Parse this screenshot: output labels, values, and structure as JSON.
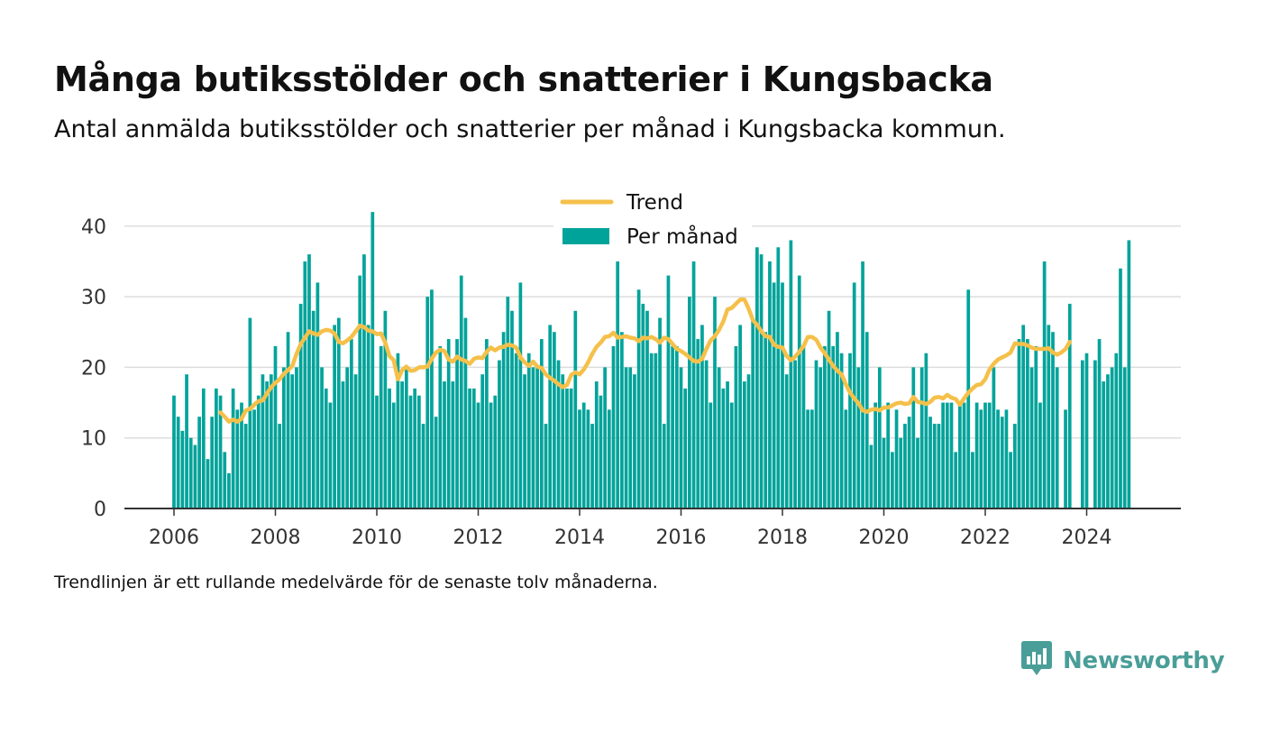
{
  "title": "Många butiksstölder och snatterier i Kungsbacka",
  "subtitle": "Antal anmälda butiksstölder och snatterier per månad i Kungsbacka kommun.",
  "footnote": "Trendlinjen är ett rullande medelvärde för de senaste tolv månaderna.",
  "brand": {
    "name": "Newsworthy",
    "icon": "newsworthy-logo-icon"
  },
  "colors": {
    "bars": "#00a39a",
    "trend": "#f5c04a",
    "grid": "#dddddd",
    "axis": "#333333",
    "brand": "#4a9e98"
  },
  "chart_data": {
    "type": "bar",
    "title": "Många butiksstölder och snatterier i Kungsbacka",
    "xlabel": "",
    "ylabel": "",
    "x_ticks": [
      "2006",
      "2008",
      "2010",
      "2012",
      "2014",
      "2016",
      "2018",
      "2020",
      "2022",
      "2024"
    ],
    "y_ticks": [
      0,
      10,
      20,
      30,
      40
    ],
    "ylim": [
      0,
      42
    ],
    "x_start": "2006-01",
    "grid": true,
    "legend_position": "top-center",
    "legend": [
      "Trend",
      "Per månad"
    ],
    "series": [
      {
        "name": "Per månad",
        "type": "bar",
        "values": [
          16,
          13,
          11,
          19,
          10,
          9,
          13,
          17,
          7,
          13,
          17,
          16,
          8,
          5,
          17,
          14,
          15,
          12,
          27,
          14,
          16,
          19,
          18,
          19,
          23,
          12,
          20,
          25,
          19,
          20,
          29,
          35,
          36,
          28,
          32,
          20,
          17,
          15,
          26,
          27,
          18,
          20,
          24,
          19,
          33,
          36,
          26,
          42,
          16,
          23,
          28,
          17,
          15,
          22,
          18,
          20,
          16,
          17,
          16,
          12,
          30,
          31,
          13,
          23,
          18,
          24,
          18,
          24,
          33,
          27,
          17,
          17,
          15,
          19,
          24,
          15,
          16,
          21,
          25,
          30,
          28,
          22,
          32,
          19,
          22,
          20,
          20,
          24,
          12,
          26,
          25,
          21,
          19,
          17,
          17,
          28,
          14,
          15,
          14,
          12,
          18,
          16,
          20,
          14,
          23,
          35,
          25,
          20,
          20,
          19,
          31,
          29,
          28,
          22,
          22,
          27,
          12,
          33,
          23,
          23,
          20,
          17,
          30,
          35,
          24,
          26,
          21,
          15,
          30,
          20,
          17,
          18,
          15,
          23,
          26,
          18,
          19,
          27,
          37,
          36,
          25,
          35,
          32,
          37,
          32,
          19,
          38,
          21,
          33,
          23,
          14,
          14,
          21,
          20,
          23,
          28,
          23,
          25,
          22,
          14,
          22,
          32,
          20,
          35,
          25,
          9,
          15,
          20,
          10,
          15,
          8,
          14,
          10,
          12,
          13,
          20,
          10,
          20,
          22,
          13,
          12,
          12,
          15,
          15,
          15,
          8,
          15,
          15,
          31,
          8,
          15,
          14,
          15,
          15,
          20,
          14,
          13,
          14,
          8,
          12,
          24,
          26,
          24,
          20,
          23,
          15,
          35,
          26,
          25,
          20,
          0,
          14,
          29,
          0,
          0,
          21,
          22,
          0,
          21,
          24,
          18,
          19,
          20,
          22,
          34,
          20,
          38
        ],
        "missing_months": [
          "2023-07",
          "2023-10",
          "2023-11",
          "2024-02"
        ]
      },
      {
        "name": "Trend",
        "type": "line",
        "start": "2006-12",
        "values": [
          13.6,
          13.0,
          12.3,
          12.6,
          12.3,
          12.7,
          13.9,
          14.1,
          14.7,
          15.2,
          15.3,
          16.3,
          17.2,
          17.8,
          18.3,
          19.1,
          19.6,
          20.2,
          21.9,
          23.3,
          24.2,
          25.1,
          24.8,
          24.6,
          25.1,
          25.3,
          25.2,
          24.8,
          23.6,
          23.4,
          23.8,
          24.3,
          25.1,
          25.9,
          25.7,
          25.2,
          25.1,
          24.7,
          24.8,
          23.5,
          21.6,
          21.0,
          18.3,
          19.6,
          20.1,
          19.5,
          19.6,
          20.0,
          20.0,
          20.1,
          21.2,
          22.1,
          22.5,
          22.3,
          21.1,
          20.8,
          21.5,
          21.1,
          20.9,
          20.5,
          21.2,
          21.4,
          21.3,
          22.2,
          22.8,
          22.4,
          22.8,
          22.9,
          23.2,
          23.1,
          22.8,
          21.4,
          20.7,
          20.2,
          20.8,
          20.1,
          19.9,
          19.0,
          18.5,
          18.1,
          17.6,
          17.2,
          17.5,
          18.9,
          19.3,
          19.0,
          19.7,
          20.7,
          21.9,
          22.9,
          23.5,
          24.3,
          24.4,
          24.9,
          24.2,
          24.3,
          24.4,
          24.2,
          24.1,
          23.7,
          24.2,
          24.1,
          24.3,
          24.0,
          23.5,
          24.2,
          24.0,
          23.3,
          22.6,
          22.3,
          21.9,
          21.4,
          20.9,
          20.8,
          21.2,
          22.6,
          23.8,
          24.4,
          25.3,
          26.5,
          28.2,
          28.4,
          29.0,
          29.6,
          29.6,
          28.3,
          26.7,
          26.0,
          25.1,
          24.4,
          24.3,
          23.2,
          22.9,
          22.8,
          21.6,
          21.0,
          21.5,
          22.2,
          23.0,
          24.3,
          24.3,
          23.9,
          22.8,
          22.0,
          21.1,
          20.2,
          19.5,
          19.0,
          17.6,
          16.4,
          15.6,
          14.9,
          13.9,
          13.7,
          14.0,
          14.1,
          13.9,
          14.3,
          14.3,
          14.6,
          14.9,
          15.0,
          14.8,
          14.9,
          15.8,
          15.1,
          15.0,
          14.8,
          15.1,
          15.7,
          15.8,
          15.6,
          16.1,
          15.7,
          15.5,
          14.7,
          15.6,
          16.4,
          17.0,
          17.5,
          17.6,
          18.3,
          19.7,
          20.5,
          21.1,
          21.4,
          21.7,
          22.1,
          23.4,
          23.3,
          23.3,
          23.1,
          22.8,
          22.6,
          22.6,
          22.6,
          22.7,
          22.1,
          21.8,
          22.1,
          22.6,
          23.6
        ]
      }
    ]
  }
}
